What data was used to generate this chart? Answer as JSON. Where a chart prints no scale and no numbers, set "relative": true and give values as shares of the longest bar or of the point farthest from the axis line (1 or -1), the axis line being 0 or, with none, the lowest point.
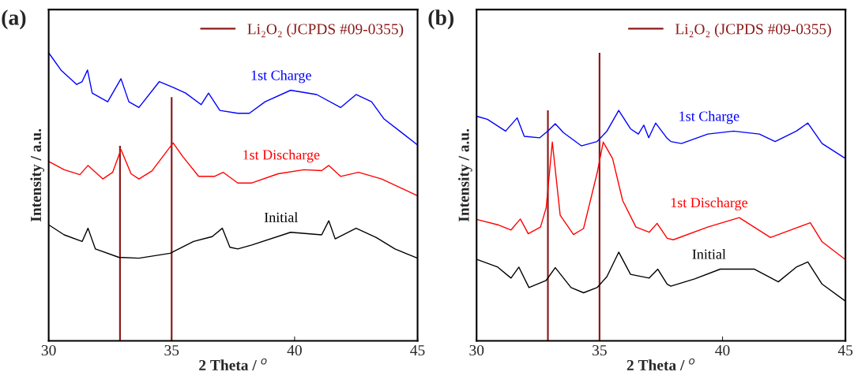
{
  "chart_data": [
    {
      "type": "line",
      "title": "(a)",
      "xlabel": "2 Theta / $^{o}$",
      "ylabel": "Intensity / a.u.",
      "relative": true,
      "xlim": [
        30,
        45
      ],
      "xticks": [
        30,
        35,
        40,
        45
      ],
      "tick_labels": "x",
      "legend": "top right",
      "series": [
        {
          "name": "1st Charge",
          "color": "#0000ff",
          "x": [
            30.0,
            30.5,
            31.14,
            31.36,
            31.58,
            31.77,
            32.4,
            32.94,
            33.26,
            33.67,
            34.5,
            35.06,
            35.57,
            36.2,
            36.5,
            36.96,
            37.69,
            38.16,
            38.8,
            39.84,
            40.9,
            41.87,
            42.5,
            43.13,
            43.64,
            44.4,
            45.0
          ],
          "values": [
            1.0,
            0.94,
            0.89,
            0.9,
            0.94,
            0.86,
            0.83,
            0.91,
            0.83,
            0.81,
            0.9,
            0.88,
            0.86,
            0.82,
            0.86,
            0.8,
            0.79,
            0.79,
            0.83,
            0.87,
            0.855,
            0.81,
            0.855,
            0.83,
            0.77,
            0.72,
            0.68
          ]
        },
        {
          "name": "1st Discharge",
          "color": "#ff0000",
          "x": [
            30.0,
            30.63,
            31.27,
            31.6,
            32.2,
            32.6,
            32.94,
            33.35,
            33.67,
            34.2,
            35.06,
            35.47,
            36.1,
            36.74,
            37.1,
            37.69,
            38.26,
            39.33,
            40.38,
            41.1,
            41.39,
            41.87,
            42.6,
            43.54,
            45.0
          ],
          "values": [
            0.623,
            0.594,
            0.577,
            0.609,
            0.562,
            0.585,
            0.664,
            0.58,
            0.562,
            0.59,
            0.687,
            0.638,
            0.571,
            0.571,
            0.585,
            0.548,
            0.548,
            0.58,
            0.594,
            0.591,
            0.609,
            0.571,
            0.585,
            0.562,
            0.504
          ]
        },
        {
          "name": "Initial",
          "color": "#000000",
          "x": [
            30.0,
            30.63,
            31.36,
            31.6,
            31.9,
            32.85,
            33.67,
            34.94,
            35.89,
            36.65,
            37.06,
            37.37,
            37.69,
            38.26,
            39.84,
            41.1,
            41.39,
            41.65,
            42.5,
            43.32,
            44.08,
            45.0
          ],
          "values": [
            0.403,
            0.368,
            0.345,
            0.391,
            0.319,
            0.29,
            0.287,
            0.304,
            0.345,
            0.362,
            0.391,
            0.325,
            0.319,
            0.333,
            0.377,
            0.368,
            0.417,
            0.354,
            0.391,
            0.359,
            0.319,
            0.287
          ]
        },
        {
          "type": "bar",
          "name": "Li₂O₂ (JCPDS #09-0355)",
          "color": "#8b1a1a",
          "x": [
            32.9,
            35.0
          ],
          "values": [
            0.677,
            0.846
          ]
        }
      ]
    },
    {
      "type": "line",
      "title": "(b)",
      "xlabel": "2 Theta / $^{o}$",
      "ylabel": "Intensity / a.u.",
      "relative": true,
      "xlim": [
        30,
        45
      ],
      "xticks": [
        30,
        35,
        40,
        45
      ],
      "tick_labels": "x",
      "legend": "top right",
      "series": [
        {
          "name": "1st Charge",
          "color": "#0000ff",
          "x": [
            30.03,
            30.44,
            31.18,
            31.65,
            31.94,
            32.57,
            32.89,
            33.2,
            33.53,
            34.26,
            34.9,
            35.3,
            35.78,
            36.26,
            36.58,
            36.8,
            37.0,
            37.28,
            37.75,
            37.9,
            38.33,
            39.4,
            40.45,
            41.5,
            42.14,
            43.0,
            43.47,
            44.05,
            45.0
          ],
          "values": [
            0.779,
            0.769,
            0.728,
            0.774,
            0.71,
            0.705,
            0.728,
            0.754,
            0.723,
            0.677,
            0.692,
            0.728,
            0.8,
            0.736,
            0.718,
            0.749,
            0.705,
            0.756,
            0.703,
            0.692,
            0.685,
            0.718,
            0.728,
            0.718,
            0.692,
            0.728,
            0.756,
            0.685,
            0.633
          ]
        },
        {
          "name": "1st Discharge",
          "color": "#ff0000",
          "x": [
            30.03,
            30.86,
            31.4,
            31.78,
            32.1,
            32.6,
            32.83,
            33.08,
            33.4,
            33.94,
            34.35,
            34.9,
            35.15,
            35.53,
            35.94,
            36.48,
            37.02,
            37.34,
            37.75,
            38.0,
            39.4,
            40.68,
            41.95,
            42.77,
            43.57,
            44.05,
            45.0
          ],
          "values": [
            0.421,
            0.403,
            0.385,
            0.423,
            0.372,
            0.395,
            0.462,
            0.69,
            0.436,
            0.369,
            0.39,
            0.582,
            0.69,
            0.633,
            0.487,
            0.395,
            0.377,
            0.408,
            0.356,
            0.351,
            0.395,
            0.428,
            0.359,
            0.385,
            0.41,
            0.344,
            0.282
          ]
        },
        {
          "name": "Initial",
          "color": "#000000",
          "x": [
            30.03,
            30.86,
            31.4,
            31.72,
            32.13,
            32.83,
            33.2,
            33.84,
            34.35,
            34.9,
            35.3,
            35.78,
            36.26,
            37.02,
            37.37,
            37.75,
            37.9,
            38.87,
            39.91,
            41.3,
            42.27,
            43.0,
            43.47,
            44.05,
            45.0
          ],
          "values": [
            0.282,
            0.256,
            0.218,
            0.256,
            0.185,
            0.21,
            0.254,
            0.185,
            0.167,
            0.185,
            0.223,
            0.308,
            0.231,
            0.218,
            0.249,
            0.197,
            0.19,
            0.215,
            0.249,
            0.249,
            0.205,
            0.256,
            0.274,
            0.197,
            0.138
          ]
        },
        {
          "type": "bar",
          "name": "Li₂O₂ (JCPDS #09-0355)",
          "color": "#8b1a1a",
          "x": [
            32.9,
            35.0
          ],
          "values": [
            0.8,
            1.0
          ]
        }
      ]
    }
  ]
}
